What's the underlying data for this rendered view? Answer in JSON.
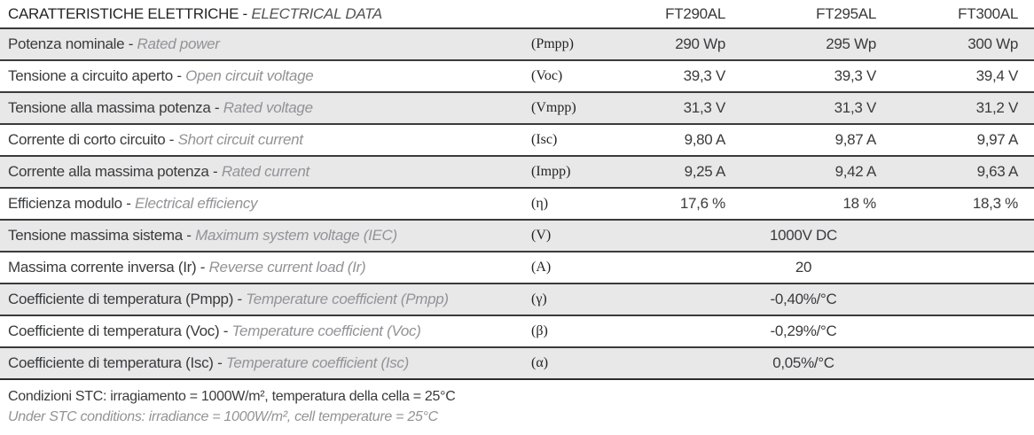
{
  "table": {
    "title_it": "CARATTERISTICHE ELETTRICHE -",
    "title_en": "ELECTRICAL DATA",
    "products": [
      "FT290AL",
      "FT295AL",
      "FT300AL"
    ],
    "rows": [
      {
        "label_it": "Potenza nominale -",
        "label_en": "Rated power",
        "symbol": "(Pmpp)",
        "values": [
          "290 Wp",
          "295 Wp",
          "300 Wp"
        ]
      },
      {
        "label_it": "Tensione a circuito aperto -",
        "label_en": "Open circuit voltage",
        "symbol": "(Voc)",
        "values": [
          "39,3 V",
          "39,3 V",
          "39,4 V"
        ]
      },
      {
        "label_it": "Tensione alla massima potenza -",
        "label_en": "Rated voltage",
        "symbol": "(Vmpp)",
        "values": [
          "31,3 V",
          "31,3 V",
          "31,2 V"
        ]
      },
      {
        "label_it": "Corrente di corto circuito -",
        "label_en": "Short circuit current",
        "symbol": "(Isc)",
        "values": [
          "9,80 A",
          "9,87 A",
          "9,97 A"
        ]
      },
      {
        "label_it": "Corrente alla massima potenza -",
        "label_en": "Rated current",
        "symbol": "(Impp)",
        "values": [
          "9,25 A",
          "9,42 A",
          "9,63 A"
        ]
      },
      {
        "label_it": "Efficienza modulo -",
        "label_en": "Electrical efficiency",
        "symbol": "(η)",
        "values": [
          "17,6 %",
          "18 %",
          "18,3 %"
        ]
      },
      {
        "label_it": "Tensione massima sistema -",
        "label_en": "Maximum system voltage (IEC)",
        "symbol": "(V)",
        "merged_value": "1000V DC"
      },
      {
        "label_it": "Massima corrente inversa (Ir) -",
        "label_en": "Reverse current load (Ir)",
        "symbol": "(A)",
        "merged_value": "20"
      },
      {
        "label_it": "Coefficiente di temperatura (Pmpp) -",
        "label_en": "Temperature coefficient (Pmpp)",
        "symbol": "(γ)",
        "merged_value": "-0,40%/°C"
      },
      {
        "label_it": "Coefficiente di temperatura (Voc) -",
        "label_en": "Temperature coefficient (Voc)",
        "symbol": "(β)",
        "merged_value": "-0,29%/°C"
      },
      {
        "label_it": "Coefficiente di temperatura (Isc) -",
        "label_en": "Temperature coefficient (Isc)",
        "symbol": "(α)",
        "merged_value": "0,05%/°C"
      }
    ],
    "footnotes": {
      "line1": "Condizioni STC: irragiamento = 1000W/m², temperatura della cella = 25°C",
      "line2": "Under STC conditions: irradiance = 1000W/m², cell temperature = 25°C"
    }
  },
  "colors": {
    "row_stripe": "#e8e8e9",
    "border": "#3a3a3c",
    "text_primary": "#3a3b3d",
    "text_secondary": "#929396"
  }
}
